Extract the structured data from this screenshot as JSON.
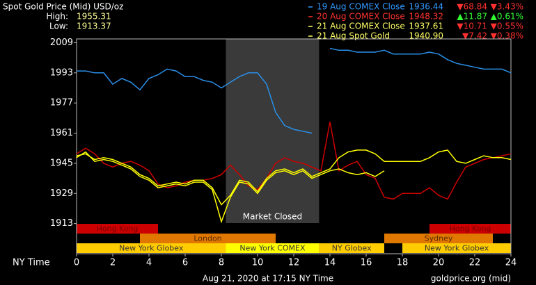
{
  "chart_data": {
    "type": "line",
    "title": "Spot Gold Price (Mid) USD/oz",
    "stats": [
      {
        "label": "High:",
        "value": "1955.31"
      },
      {
        "label": "Low:",
        "value": "1913.37"
      }
    ],
    "legend_details": [
      {
        "close": "1936.44",
        "change": "▼68.84",
        "pct": "▼3.43%",
        "change_color": "#ff3030"
      },
      {
        "close": "1948.32",
        "change": "▲11.87",
        "pct": "▲0.61%",
        "change_color": "#33ff33"
      },
      {
        "close": "1937.61",
        "change": "▼10.71",
        "pct": "▼0.55%",
        "change_color": "#ff3030"
      },
      {
        "close": "1940.90",
        "change": "▼7.42",
        "pct": "▼0.38%",
        "change_color": "#ff3030"
      }
    ],
    "x_label": "NY Time",
    "footer": "Aug 21, 2020 at 17:15 NY Time",
    "source": "goldprice.org (mid)",
    "xlim": [
      0,
      24
    ],
    "xticks": [
      0,
      2,
      4,
      6,
      8,
      10,
      12,
      14,
      16,
      18,
      20,
      22,
      24
    ],
    "ylim": [
      1897,
      2011
    ],
    "yticks": [
      2009,
      1993,
      1977,
      1961,
      1945,
      1929,
      1913
    ],
    "grid": false,
    "closed": {
      "start": 8.25,
      "end": 13.4,
      "label": "Market Closed"
    },
    "sessions": [
      [
        {
          "name": "Hong Kong",
          "start": 0,
          "end": 4.5,
          "color": "#cc0000",
          "text_color": "#7a0000"
        },
        {
          "name": "Hong Kong",
          "start": 19.5,
          "end": 24,
          "color": "#cc0000",
          "text_color": "#7a0000"
        }
      ],
      [
        {
          "name": "London",
          "start": 3.5,
          "end": 11,
          "color": "#e07800",
          "text_color": "#5a2a00"
        },
        {
          "name": "Sydney",
          "start": 17,
          "end": 23,
          "color": "#e07800",
          "text_color": "#5a2a00"
        }
      ],
      [
        {
          "name": "New York Globex",
          "start": 0,
          "end": 8.25,
          "color": "#ffcc00",
          "text_color": "#333333"
        },
        {
          "name": "New York COMEX",
          "start": 8.25,
          "end": 13.4,
          "color": "#ffff00",
          "text_color": "#333333"
        },
        {
          "name": "NY Globex",
          "start": 13.4,
          "end": 17,
          "color": "#ffcc00",
          "text_color": "#333333"
        },
        {
          "name": "New York Globex",
          "start": 18,
          "end": 24,
          "color": "#ffcc00",
          "text_color": "#333333"
        }
      ]
    ],
    "x": [
      0,
      0.5,
      1,
      1.5,
      2,
      2.5,
      3,
      3.5,
      4,
      4.5,
      5,
      5.5,
      6,
      6.5,
      7,
      7.5,
      8,
      8.5,
      9,
      9.5,
      10,
      10.5,
      11,
      11.5,
      12,
      12.5,
      13,
      13.5,
      14,
      14.5,
      15,
      15.5,
      16,
      16.5,
      17,
      17.5,
      18,
      18.5,
      19,
      19.5,
      20,
      20.5,
      21,
      21.5,
      22,
      22.5,
      23,
      23.5,
      24
    ],
    "series": [
      {
        "name": "19 Aug COMEX Close",
        "color": "#2a8fe8",
        "text_color": "#3399ff",
        "values": [
          1994,
          1994,
          1993,
          1993,
          1987,
          1990,
          1988,
          1984,
          1990,
          1992,
          1995,
          1994,
          1991,
          1991,
          1989,
          1988,
          1985,
          1988,
          1991,
          1993,
          1993,
          1987,
          1972,
          1965,
          1963,
          1962,
          1961,
          null,
          2006,
          2005,
          2005,
          2004,
          2004,
          2004,
          2005,
          2003,
          2003,
          2003,
          2003,
          2004,
          2003,
          2000,
          1998,
          1997,
          1996,
          1995,
          1995,
          1995,
          1993
        ]
      },
      {
        "name": "20 Aug COMEX Close",
        "color": "#d00000",
        "text_color": "#ff3333",
        "values": [
          1950,
          1953,
          1950,
          1945,
          1943,
          1945,
          1946,
          1944,
          1941,
          1934,
          1932,
          1933,
          1935,
          1936,
          1936,
          1937,
          1939,
          1944,
          1939,
          1933,
          1931,
          1937,
          1945,
          1948,
          1946,
          1945,
          1943,
          1941,
          1967,
          1941,
          1944,
          1946,
          1939,
          1937,
          1927,
          1926,
          1929,
          1929,
          1929,
          1932,
          1928,
          1926,
          1935,
          1943,
          1945,
          1947,
          1948,
          1949,
          1950
        ]
      },
      {
        "name": "21 Aug COMEX Close",
        "color": "#ffff00",
        "text_color": "#ffff66",
        "values": [
          1949,
          1950,
          1947,
          1948,
          1947,
          1945,
          1943,
          1939,
          1937,
          1933,
          1934,
          1935,
          1934,
          1936,
          1936,
          1932,
          1923,
          1928,
          1936,
          1935,
          1930,
          1937,
          1941,
          1942,
          1940,
          1942,
          1938,
          1940,
          1942,
          1948,
          1951,
          1952,
          1952,
          1950,
          1946,
          1946,
          1946,
          1946,
          1946,
          1948,
          1951,
          1952,
          1946,
          1945,
          1947,
          1949,
          1948,
          1948,
          1947
        ]
      },
      {
        "name": "21 Aug Spot Gold",
        "color": "#ffff00",
        "text_color": "#ffff66",
        "values": [
          1948,
          1951,
          1946,
          1947,
          1946,
          1944,
          1942,
          1938,
          1936,
          1932,
          1933,
          1934,
          1933,
          1935,
          1935,
          1931,
          1914,
          1927,
          1935,
          1934,
          1929,
          1936,
          1940,
          1941,
          1939,
          1941,
          1937,
          1939,
          1941,
          1942,
          1940,
          1939,
          1940,
          1938,
          1941,
          null,
          null,
          null,
          null,
          null,
          null,
          null,
          null,
          null,
          null,
          null,
          null,
          null,
          null
        ]
      }
    ]
  }
}
